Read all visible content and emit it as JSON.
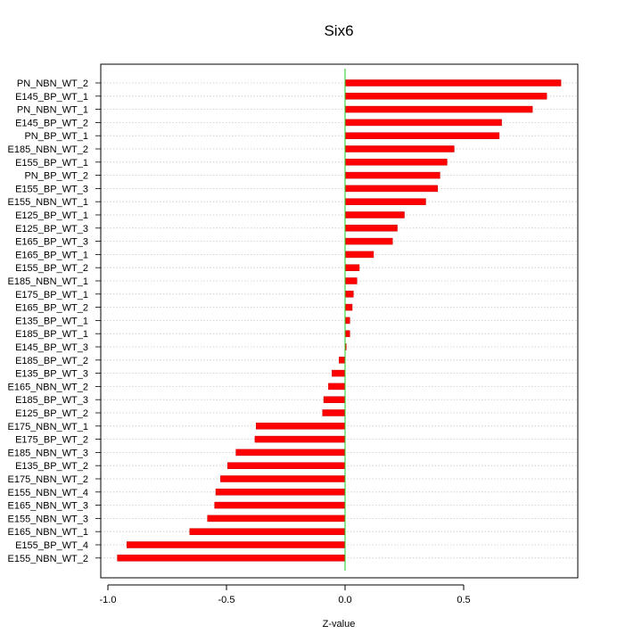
{
  "chart_data": {
    "type": "bar",
    "orientation": "horizontal",
    "title": "Six6",
    "xlabel": "Z-value",
    "ylabel": "",
    "xlim": [
      -1.0,
      0.98
    ],
    "xticks": [
      -1.0,
      -0.5,
      0.0,
      0.5
    ],
    "xtick_labels": [
      "-1.0",
      "-0.5",
      "0.0",
      "0.5"
    ],
    "grid": "horizontal dotted",
    "legend": "none",
    "zero_line": true,
    "colors": {
      "bar": "#ff0000",
      "bar_edge": "#c80000",
      "zero_line": "#22cc22",
      "grid": "#c8c8c8",
      "frame": "#000000"
    },
    "categories": [
      "PN_NBN_WT_2",
      "E145_BP_WT_1",
      "PN_NBN_WT_1",
      "E145_BP_WT_2",
      "PN_BP_WT_1",
      "E185_NBN_WT_2",
      "E155_BP_WT_1",
      "PN_BP_WT_2",
      "E155_BP_WT_3",
      "E155_NBN_WT_1",
      "E125_BP_WT_1",
      "E125_BP_WT_3",
      "E165_BP_WT_3",
      "E165_BP_WT_1",
      "E155_BP_WT_2",
      "E185_NBN_WT_1",
      "E175_BP_WT_1",
      "E165_BP_WT_2",
      "E135_BP_WT_1",
      "E185_BP_WT_1",
      "E145_BP_WT_3",
      "E185_BP_WT_2",
      "E135_BP_WT_3",
      "E165_NBN_WT_2",
      "E185_BP_WT_3",
      "E125_BP_WT_2",
      "E175_NBN_WT_1",
      "E175_BP_WT_2",
      "E185_NBN_WT_3",
      "E135_BP_WT_2",
      "E175_NBN_WT_2",
      "E155_NBN_WT_4",
      "E165_NBN_WT_3",
      "E155_NBN_WT_3",
      "E165_NBN_WT_1",
      "E155_BP_WT_4",
      "E155_NBN_WT_2"
    ],
    "values": [
      0.91,
      0.85,
      0.79,
      0.66,
      0.65,
      0.46,
      0.43,
      0.4,
      0.39,
      0.34,
      0.25,
      0.22,
      0.2,
      0.12,
      0.06,
      0.05,
      0.035,
      0.03,
      0.02,
      0.02,
      0.005,
      -0.025,
      -0.055,
      -0.07,
      -0.09,
      -0.095,
      -0.375,
      -0.38,
      -0.46,
      -0.495,
      -0.525,
      -0.545,
      -0.55,
      -0.58,
      -0.655,
      -0.92,
      -0.96
    ]
  }
}
